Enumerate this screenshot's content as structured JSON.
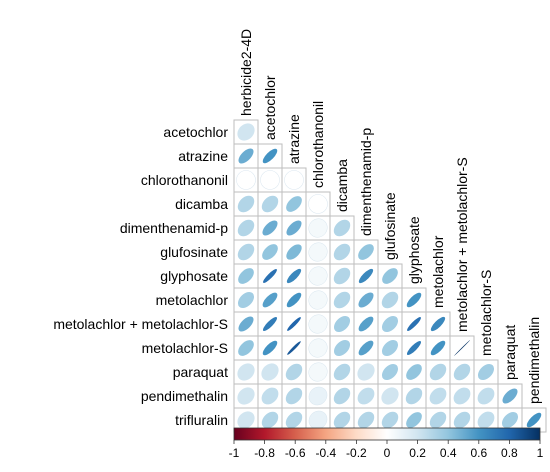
{
  "chart_data": {
    "type": "heatmap",
    "variables": [
      "herbicide2-4D",
      "acetochlor",
      "atrazine",
      "chlorothanonil",
      "dicamba",
      "dimenthenamid-p",
      "glufosinate",
      "glyphosate",
      "metolachlor",
      "metolachlor + metolachlor-S",
      "metolachlor-S",
      "paraquat",
      "pendimethalin",
      "trifluralin"
    ],
    "row_labels": [
      "acetochlor",
      "atrazine",
      "chlorothanonil",
      "dicamba",
      "dimenthenamid-p",
      "glufosinate",
      "glyphosate",
      "metolachlor",
      "metolachlor + metolachlor-S",
      "metolachlor-S",
      "paraquat",
      "pendimethalin",
      "trifluralin"
    ],
    "col_labels": [
      "herbicide2-4D",
      "acetochlor",
      "atrazine",
      "chlorothanonil",
      "dicamba",
      "dimenthenamid-p",
      "glufosinate",
      "glyphosate",
      "metolachlor",
      "metolachlor + metolachlor-S",
      "metolachlor-S",
      "paraquat",
      "pendimethalin"
    ],
    "values": [
      [
        0.2
      ],
      [
        0.5,
        0.6
      ],
      [
        0.0,
        0.0,
        0.0
      ],
      [
        0.3,
        0.3,
        0.4,
        0.0
      ],
      [
        0.3,
        0.5,
        0.5,
        0.05,
        0.3
      ],
      [
        0.3,
        0.4,
        0.45,
        0.05,
        0.3,
        0.4
      ],
      [
        0.4,
        0.75,
        0.65,
        0.05,
        0.3,
        0.65,
        0.4
      ],
      [
        0.35,
        0.55,
        0.6,
        0.05,
        0.3,
        0.5,
        0.3,
        0.6
      ],
      [
        0.5,
        0.7,
        0.8,
        0.05,
        0.35,
        0.55,
        0.35,
        0.75,
        0.65
      ],
      [
        0.4,
        0.6,
        0.85,
        0.05,
        0.35,
        0.55,
        0.35,
        0.7,
        0.6,
        0.99
      ],
      [
        0.2,
        0.2,
        0.3,
        0.05,
        0.3,
        0.2,
        0.35,
        0.4,
        0.3,
        0.3,
        0.35
      ],
      [
        0.2,
        0.25,
        0.3,
        0.1,
        0.3,
        0.25,
        0.2,
        0.3,
        0.25,
        0.25,
        0.25,
        0.5
      ],
      [
        0.2,
        0.3,
        0.3,
        0.1,
        0.3,
        0.3,
        0.3,
        0.4,
        0.3,
        0.3,
        0.25,
        0.35,
        0.6
      ]
    ],
    "colorbar": {
      "range": [
        -1,
        1
      ],
      "ticks": [
        "-1",
        "-0.8",
        "-0.6",
        "-0.4",
        "-0.2",
        "0",
        "0.2",
        "0.4",
        "0.6",
        "0.8",
        "1"
      ],
      "colors": [
        "#67001F",
        "#B2182B",
        "#D6604D",
        "#F4A582",
        "#FDDBC7",
        "#FFFFFF",
        "#D1E5F0",
        "#92C5DE",
        "#4393C3",
        "#2166AC",
        "#053061"
      ]
    }
  }
}
